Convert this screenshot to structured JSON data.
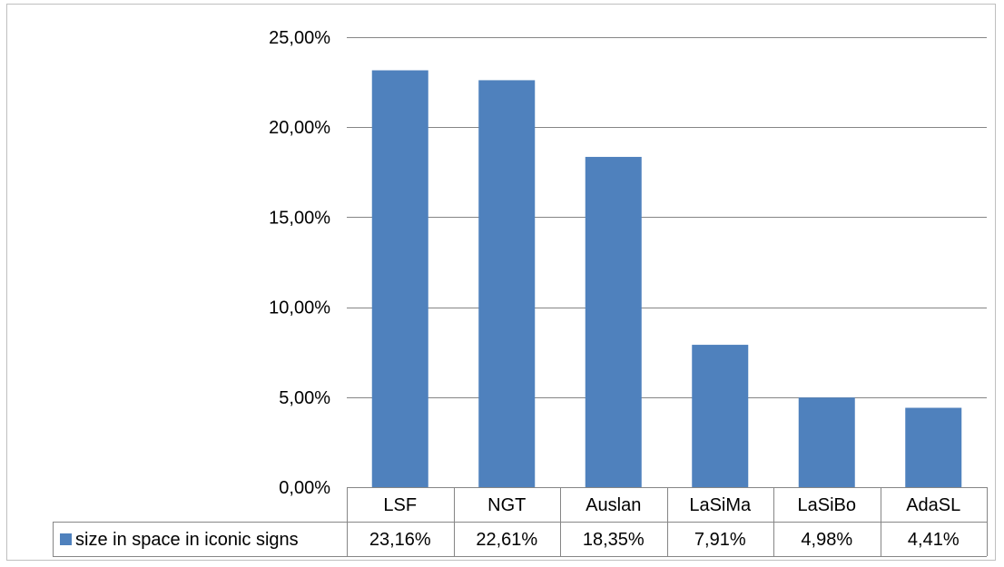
{
  "chart_data": {
    "type": "bar",
    "title": "",
    "xlabel": "",
    "ylabel": "",
    "categories": [
      "LSF",
      "NGT",
      "Auslan",
      "LaSiMa",
      "LaSiBo",
      "AdaSL"
    ],
    "series": [
      {
        "name": "size in space in iconic signs",
        "values": [
          23.16,
          22.61,
          18.35,
          7.91,
          4.98,
          4.41
        ],
        "value_labels": [
          "23,16%",
          "22,61%",
          "18,35%",
          "7,91%",
          "4,98%",
          "4,41%"
        ],
        "color": "#4f81bd"
      }
    ],
    "ylim": [
      0,
      25
    ],
    "yticks": [
      0,
      5,
      10,
      15,
      20,
      25
    ],
    "ytick_labels": [
      "0,00%",
      "5,00%",
      "10,00%",
      "15,00%",
      "20,00%",
      "25,00%"
    ],
    "grid": true,
    "legend": "data-table-left",
    "data_table": true
  },
  "colors": {
    "bar": "#4f81bd",
    "grid": "#868686",
    "border": "#bfbfbf"
  }
}
